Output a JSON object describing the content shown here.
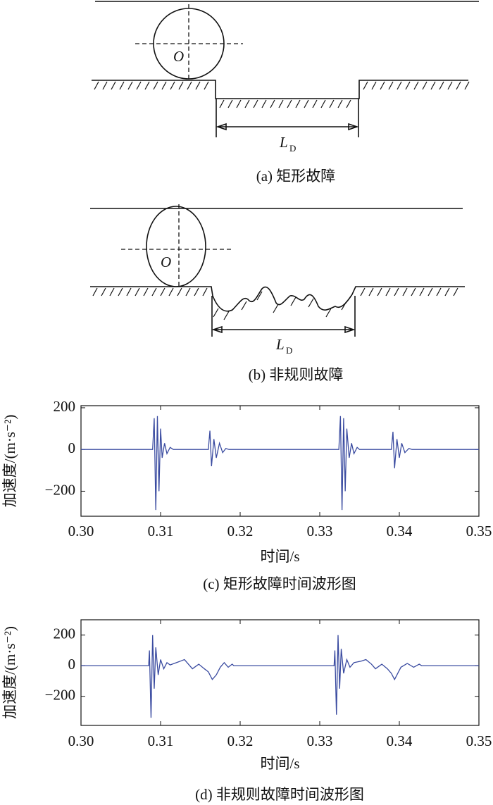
{
  "diagram_a": {
    "center": "O",
    "length": "L",
    "length_sub": "D",
    "caption": "(a) 矩形故障"
  },
  "diagram_b": {
    "center": "O",
    "length": "L",
    "length_sub": "D",
    "caption": "(b) 非规则故障"
  },
  "chart_data": [
    {
      "type": "line",
      "caption": "(c) 矩形故障时间波形图",
      "xlabel": "时间/s",
      "ylabel": "加速度/(m·s⁻²)",
      "xlim": [
        0.3,
        0.35
      ],
      "ylim": [
        -320,
        210
      ],
      "xticks": [
        {
          "value": 0.3,
          "label": "0.30"
        },
        {
          "value": 0.31,
          "label": "0.31"
        },
        {
          "value": 0.32,
          "label": "0.32"
        },
        {
          "value": 0.33,
          "label": "0.33"
        },
        {
          "value": 0.34,
          "label": "0.34"
        },
        {
          "value": 0.35,
          "label": "0.35"
        }
      ],
      "yticks": [
        {
          "value": -200,
          "label": "−200"
        },
        0,
        200
      ],
      "x": [
        0.3,
        0.309,
        0.3092,
        0.3094,
        0.3096,
        0.3098,
        0.31,
        0.3102,
        0.3105,
        0.3108,
        0.3112,
        0.3116,
        0.316,
        0.3162,
        0.3164,
        0.3167,
        0.317,
        0.3174,
        0.3178,
        0.3182,
        0.3186,
        0.3324,
        0.3326,
        0.3328,
        0.333,
        0.3332,
        0.3334,
        0.3337,
        0.334,
        0.3343,
        0.3347,
        0.335,
        0.339,
        0.3392,
        0.3394,
        0.3397,
        0.34,
        0.3403,
        0.3407,
        0.3412,
        0.3416,
        0.35
      ],
      "series": [
        {
          "color": "#3a4ba0",
          "values": [
            0,
            0,
            150,
            -290,
            160,
            -200,
            100,
            -40,
            30,
            -20,
            10,
            0,
            0,
            90,
            -80,
            50,
            -40,
            30,
            -15,
            5,
            0,
            0,
            160,
            -290,
            150,
            -200,
            100,
            -40,
            30,
            -20,
            10,
            0,
            0,
            85,
            -90,
            50,
            -40,
            30,
            -15,
            5,
            0,
            0
          ]
        }
      ]
    },
    {
      "type": "line",
      "caption": "(d) 非规则故障时间波形图",
      "xlabel": "时间/s",
      "ylabel": "加速度/(m·s⁻²)",
      "xlim": [
        0.3,
        0.35
      ],
      "ylim": [
        -390,
        300
      ],
      "xticks": [
        {
          "value": 0.3,
          "label": "0.30"
        },
        {
          "value": 0.31,
          "label": "0.31"
        },
        {
          "value": 0.32,
          "label": "0.32"
        },
        {
          "value": 0.33,
          "label": "0.33"
        },
        {
          "value": 0.34,
          "label": "0.34"
        },
        {
          "value": 0.35,
          "label": "0.35"
        }
      ],
      "yticks": [
        {
          "value": -200,
          "label": "−200"
        },
        0,
        200
      ],
      "x": [
        0.3,
        0.3085,
        0.3086,
        0.3088,
        0.309,
        0.3092,
        0.3094,
        0.3097,
        0.31,
        0.3104,
        0.3108,
        0.3112,
        0.3125,
        0.313,
        0.3135,
        0.314,
        0.3148,
        0.3155,
        0.316,
        0.3165,
        0.317,
        0.3175,
        0.318,
        0.3185,
        0.319,
        0.3192,
        0.3318,
        0.3319,
        0.3321,
        0.3323,
        0.3325,
        0.3327,
        0.333,
        0.3334,
        0.3338,
        0.3343,
        0.3352,
        0.3358,
        0.3365,
        0.337,
        0.3378,
        0.3385,
        0.339,
        0.3394,
        0.3398,
        0.3402,
        0.341,
        0.3418,
        0.3425,
        0.3428,
        0.35
      ],
      "series": [
        {
          "color": "#3a4ba0",
          "values": [
            0,
            0,
            100,
            -340,
            200,
            -150,
            120,
            -60,
            40,
            -20,
            20,
            5,
            30,
            40,
            10,
            -20,
            10,
            -20,
            -40,
            -90,
            -60,
            -10,
            20,
            -10,
            10,
            0,
            0,
            100,
            -320,
            200,
            -150,
            110,
            -50,
            40,
            -10,
            20,
            30,
            40,
            10,
            -20,
            10,
            -20,
            -50,
            -90,
            -50,
            -10,
            15,
            -10,
            10,
            0,
            0
          ]
        }
      ]
    }
  ]
}
